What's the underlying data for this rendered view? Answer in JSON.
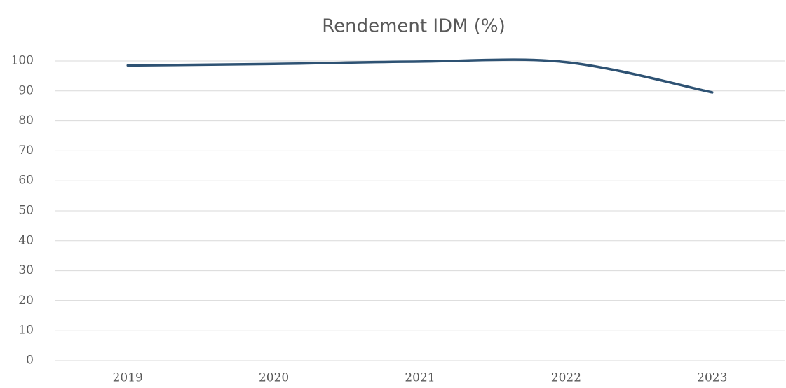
{
  "chart_data": {
    "type": "line",
    "title": "Rendement IDM (%)",
    "categories": [
      "2019",
      "2020",
      "2021",
      "2022",
      "2023"
    ],
    "series": [
      {
        "name": "Rendement IDM",
        "color": "#2e5273",
        "values": [
          98.5,
          99,
          99.8,
          99.6,
          89.5
        ]
      }
    ],
    "ylim": [
      0,
      100
    ],
    "yticks": [
      0,
      10,
      20,
      30,
      40,
      50,
      60,
      70,
      80,
      90,
      100
    ],
    "grid": true,
    "smooth": true
  }
}
